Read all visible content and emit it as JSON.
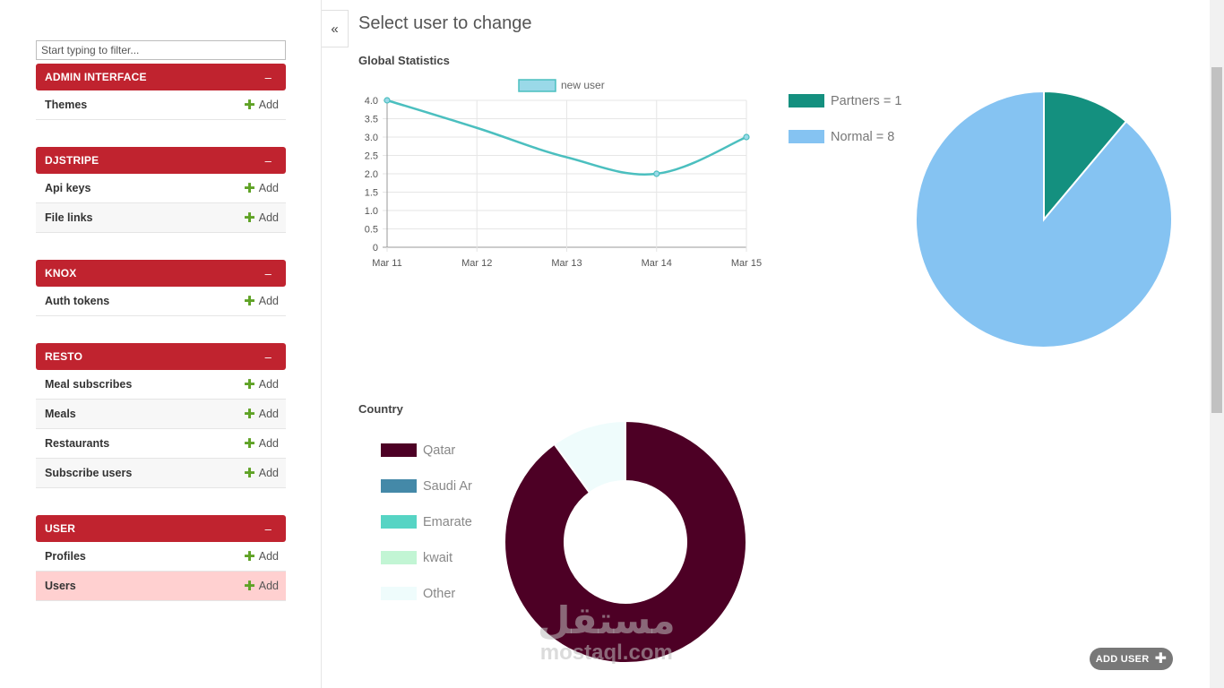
{
  "sidebar": {
    "filter_placeholder": "Start typing to filter...",
    "toggle_label": "«",
    "apps": [
      {
        "name": "ADMIN INTERFACE",
        "collapse": "–",
        "models": [
          {
            "name": "Themes",
            "add": "Add"
          }
        ]
      },
      {
        "name": "DJSTRIPE",
        "collapse": "–",
        "models": [
          {
            "name": "Api keys",
            "add": "Add"
          },
          {
            "name": "File links",
            "add": "Add"
          }
        ]
      },
      {
        "name": "KNOX",
        "collapse": "–",
        "models": [
          {
            "name": "Auth tokens",
            "add": "Add"
          }
        ]
      },
      {
        "name": "RESTO",
        "collapse": "–",
        "models": [
          {
            "name": "Meal subscribes",
            "add": "Add"
          },
          {
            "name": "Meals",
            "add": "Add"
          },
          {
            "name": "Restaurants",
            "add": "Add"
          },
          {
            "name": "Subscribe users",
            "add": "Add"
          }
        ]
      },
      {
        "name": "USER",
        "collapse": "–",
        "models": [
          {
            "name": "Profiles",
            "add": "Add"
          },
          {
            "name": "Users",
            "add": "Add",
            "active": true
          }
        ]
      }
    ]
  },
  "main": {
    "title": "Select user to change",
    "global_statistics_title": "Global Statistics",
    "country_title": "Country",
    "add_user_label": "ADD USER"
  },
  "watermark": {
    "arabic": "مستقل",
    "latin": "mostaql.com"
  },
  "colors": {
    "accent": "#c0232f",
    "active_row": "#ffd0d0",
    "line": "#4bbfbf",
    "line_fill": "#9ad9e8",
    "partners": "#14907f",
    "normal": "#85c3f2",
    "qatar": "#4d0025",
    "saudi": "#4489a8",
    "emarate": "#56d4c4",
    "kwait": "#c2f5d4",
    "other": "#effcfc"
  },
  "chart_data": [
    {
      "type": "line",
      "title": "",
      "legend": [
        "new user"
      ],
      "categories": [
        "Mar 11",
        "Mar 12",
        "Mar 13",
        "Mar 14",
        "Mar 15"
      ],
      "series": [
        {
          "name": "new user",
          "values": [
            4,
            null,
            null,
            2,
            3
          ]
        }
      ],
      "curve_samples": [
        4.0,
        3.25,
        2.45,
        2.0,
        3.0
      ],
      "ylim": [
        0,
        4
      ],
      "yticks": [
        "4.0",
        "3.5",
        "3.0",
        "2.5",
        "2.0",
        "1.5",
        "1.0",
        "0.5",
        "0"
      ]
    },
    {
      "type": "pie",
      "title": "",
      "slices": [
        {
          "label": "Partners = 1",
          "value": 1,
          "color": "#14907f"
        },
        {
          "label": "Normal = 8",
          "value": 8,
          "color": "#85c3f2"
        }
      ]
    },
    {
      "type": "pie",
      "subtype": "doughnut",
      "title": "Country",
      "slices": [
        {
          "label": "Qatar",
          "value": 90,
          "color": "#4d0025"
        },
        {
          "label": "Saudi Ar",
          "value": 0,
          "color": "#4489a8"
        },
        {
          "label": "Emarate",
          "value": 0,
          "color": "#56d4c4"
        },
        {
          "label": "kwait",
          "value": 0,
          "color": "#c2f5d4"
        },
        {
          "label": "Other",
          "value": 10,
          "color": "#effcfc"
        }
      ]
    }
  ]
}
